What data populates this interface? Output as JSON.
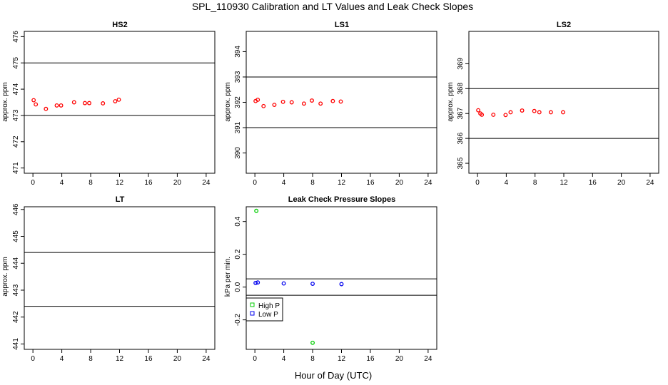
{
  "figure": {
    "title": "SPL_110930  Calibration and LT Values and Leak Check Slopes",
    "xlabel": "Hour of Day (UTC)"
  },
  "chart_data": [
    {
      "type": "scatter",
      "title": "HS2",
      "ylabel": "approx. ppm",
      "xlim": [
        -1.2,
        25.2
      ],
      "ylim": [
        470.8,
        476.2
      ],
      "xticks": [
        0,
        4,
        8,
        12,
        16,
        20,
        24
      ],
      "yticks": [
        471,
        472,
        473,
        474,
        475,
        476
      ],
      "hlines": [
        475.0,
        473.0
      ],
      "series": [
        {
          "color": "#ff0000",
          "marker": "o",
          "points": [
            [
              0.1,
              473.58
            ],
            [
              0.4,
              473.42
            ],
            [
              1.8,
              473.25
            ],
            [
              3.3,
              473.38
            ],
            [
              3.9,
              473.38
            ],
            [
              5.7,
              473.5
            ],
            [
              7.2,
              473.47
            ],
            [
              7.8,
              473.47
            ],
            [
              9.7,
              473.46
            ],
            [
              11.4,
              473.54
            ],
            [
              11.9,
              473.6
            ]
          ]
        }
      ]
    },
    {
      "type": "scatter",
      "title": "LS1",
      "ylabel": "approx. ppm",
      "xlim": [
        -1.2,
        25.2
      ],
      "ylim": [
        389.2,
        394.8
      ],
      "xticks": [
        0,
        4,
        8,
        12,
        16,
        20,
        24
      ],
      "yticks": [
        390,
        391,
        392,
        393,
        394
      ],
      "hlines": [
        393.0,
        391.0
      ],
      "series": [
        {
          "color": "#ff0000",
          "marker": "o",
          "points": [
            [
              0.1,
              392.05
            ],
            [
              0.4,
              392.1
            ],
            [
              1.2,
              391.85
            ],
            [
              2.7,
              391.9
            ],
            [
              3.9,
              392.02
            ],
            [
              5.1,
              392.0
            ],
            [
              6.8,
              391.95
            ],
            [
              7.9,
              392.07
            ],
            [
              9.1,
              391.95
            ],
            [
              10.8,
              392.05
            ],
            [
              11.9,
              392.03
            ]
          ]
        }
      ]
    },
    {
      "type": "scatter",
      "title": "LS2",
      "ylabel": "approx. ppm",
      "xlim": [
        -1.2,
        25.2
      ],
      "ylim": [
        364.6,
        370.3
      ],
      "xticks": [
        0,
        4,
        8,
        12,
        16,
        20,
        24
      ],
      "yticks": [
        365,
        366,
        367,
        368,
        369
      ],
      "hlines": [
        368.0,
        366.0
      ],
      "series": [
        {
          "color": "#ff0000",
          "marker": "o",
          "points": [
            [
              0.1,
              367.13
            ],
            [
              0.4,
              367.0
            ],
            [
              0.6,
              366.95
            ],
            [
              2.2,
              366.95
            ],
            [
              3.9,
              366.94
            ],
            [
              4.6,
              367.05
            ],
            [
              6.2,
              367.12
            ],
            [
              7.9,
              367.1
            ],
            [
              8.6,
              367.05
            ],
            [
              10.2,
              367.05
            ],
            [
              11.9,
              367.05
            ]
          ]
        }
      ]
    },
    {
      "type": "scatter",
      "title": "LT",
      "ylabel": "approx. ppm",
      "xlim": [
        -1.2,
        25.2
      ],
      "ylim": [
        440.8,
        446.1
      ],
      "xticks": [
        0,
        4,
        8,
        12,
        16,
        20,
        24
      ],
      "yticks": [
        441,
        442,
        443,
        444,
        445,
        446
      ],
      "hlines": [
        444.4,
        442.4
      ],
      "series": []
    },
    {
      "type": "scatter",
      "title": "Leak Check Pressure Slopes",
      "ylabel": "kPa per min.",
      "xlim": [
        -1.2,
        25.2
      ],
      "ylim": [
        -0.38,
        0.49
      ],
      "xticks": [
        0,
        4,
        8,
        12,
        16,
        20,
        24
      ],
      "yticks": [
        -0.2,
        0.0,
        0.2,
        0.4
      ],
      "ytick_labels": [
        "-0.2",
        "0.0",
        "0.2",
        "0.4"
      ],
      "hlines": [
        0.05,
        -0.05
      ],
      "legend": {
        "position": "left",
        "entries": [
          "High P",
          "Low P"
        ]
      },
      "series": [
        {
          "name": "High P",
          "color": "#00cc00",
          "marker": "o",
          "points": [
            [
              0.2,
              0.465
            ],
            [
              8.0,
              -0.34
            ]
          ]
        },
        {
          "name": "Low P",
          "color": "#0000ee",
          "marker": "o",
          "points": [
            [
              0.1,
              0.025
            ],
            [
              0.4,
              0.028
            ],
            [
              4.0,
              0.022
            ],
            [
              8.0,
              0.02
            ],
            [
              12.0,
              0.018
            ]
          ]
        }
      ]
    }
  ]
}
